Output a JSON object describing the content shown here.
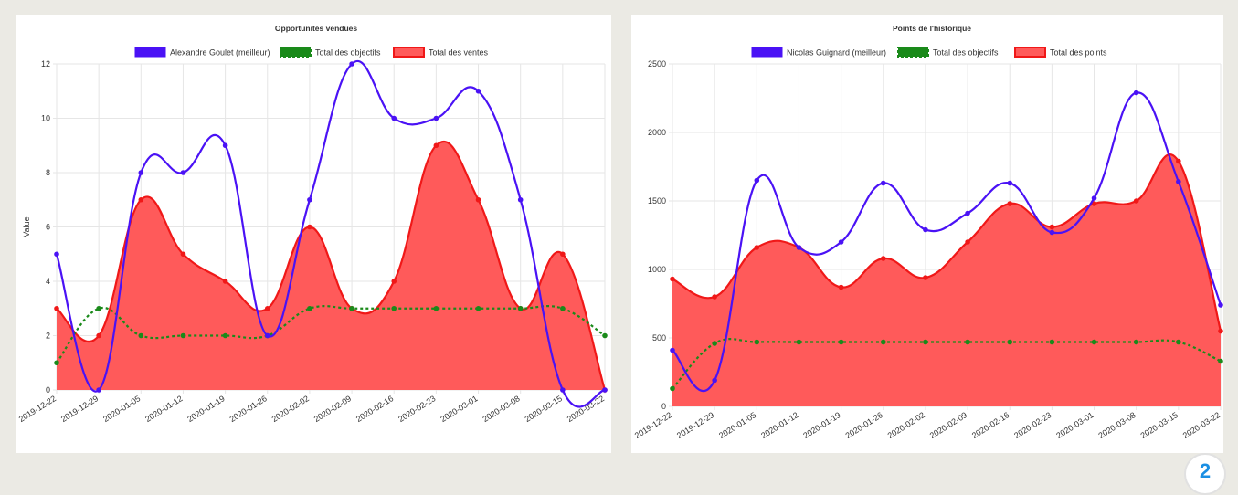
{
  "colors": {
    "best": "#4a12f5",
    "objectives": "#1a8a1a",
    "total_fill": "#ff5a5a",
    "total_line": "#f01818",
    "grid": "#e6e6e6",
    "axis_text": "#333333"
  },
  "badge_label": "2",
  "chart_data": [
    {
      "type": "line",
      "title": "Opportunités vendues",
      "ylabel": "Value",
      "xlabel": "",
      "ylim": [
        0,
        12
      ],
      "yticks": [
        0,
        2,
        4,
        6,
        8,
        10,
        12
      ],
      "categories": [
        "2019-12-22",
        "2019-12-29",
        "2020-01-05",
        "2020-01-12",
        "2020-01-19",
        "2020-01-26",
        "2020-02-02",
        "2020-02-09",
        "2020-02-16",
        "2020-02-23",
        "2020-03-01",
        "2020-03-08",
        "2020-03-15",
        "2020-03-22"
      ],
      "series": [
        {
          "name": "Alexandre Goulet (meilleur)",
          "style": "line",
          "values": [
            5,
            0,
            8,
            8,
            9,
            2,
            7,
            12,
            10,
            10,
            11,
            7,
            0,
            0
          ]
        },
        {
          "name": "Total des objectifs",
          "style": "dashed",
          "values": [
            1,
            3,
            2,
            2,
            2,
            2,
            3,
            3,
            3,
            3,
            3,
            3,
            3,
            2
          ]
        },
        {
          "name": "Total des ventes",
          "style": "area",
          "values": [
            3,
            2,
            7,
            5,
            4,
            3,
            6,
            3,
            4,
            9,
            7,
            3,
            5,
            0
          ]
        }
      ]
    },
    {
      "type": "line",
      "title": "Points de l'historique",
      "ylabel": "",
      "xlabel": "",
      "ylim": [
        0,
        2500
      ],
      "yticks": [
        0,
        500,
        1000,
        1500,
        2000,
        2500
      ],
      "categories": [
        "2019-12-22",
        "2019-12-29",
        "2020-01-05",
        "2020-01-12",
        "2020-01-19",
        "2020-01-26",
        "2020-02-02",
        "2020-02-09",
        "2020-02-16",
        "2020-02-23",
        "2020-03-01",
        "2020-03-08",
        "2020-03-15",
        "2020-03-22"
      ],
      "series": [
        {
          "name": "Nicolas Guignard (meilleur)",
          "style": "line",
          "values": [
            410,
            190,
            1650,
            1160,
            1200,
            1630,
            1290,
            1410,
            1630,
            1270,
            1520,
            2290,
            1640,
            740
          ]
        },
        {
          "name": "Total des objectifs",
          "style": "dashed",
          "values": [
            130,
            460,
            470,
            470,
            470,
            470,
            470,
            470,
            470,
            470,
            470,
            470,
            470,
            330
          ]
        },
        {
          "name": "Total des points",
          "style": "area",
          "values": [
            930,
            800,
            1160,
            1160,
            870,
            1080,
            940,
            1200,
            1480,
            1310,
            1480,
            1500,
            1790,
            550
          ]
        }
      ]
    }
  ]
}
